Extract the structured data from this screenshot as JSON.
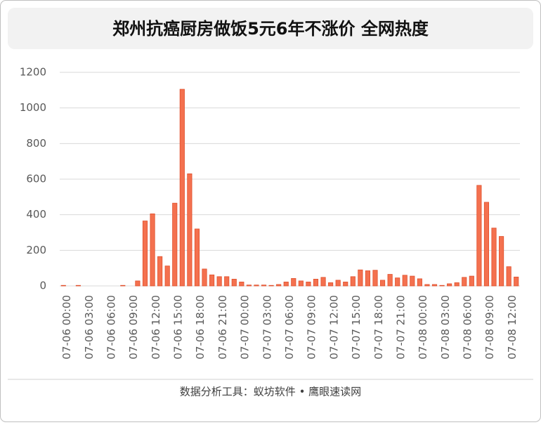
{
  "chart_data": {
    "type": "bar",
    "title": "郑州抗癌厨房做饭5元6年不涨价 全网热度",
    "footer": "数据分析工具：蚁坊软件 • 鹰眼速读网",
    "categories": [
      "07-06 00:00",
      null,
      null,
      "07-06 03:00",
      null,
      null,
      "07-06 06:00",
      null,
      null,
      "07-06 09:00",
      null,
      null,
      "07-06 12:00",
      null,
      null,
      "07-06 15:00",
      null,
      null,
      "07-06 18:00",
      null,
      null,
      "07-06 21:00",
      null,
      null,
      "07-07 00:00",
      null,
      null,
      "07-07 03:00",
      null,
      null,
      "07-07 06:00",
      null,
      null,
      "07-07 09:00",
      null,
      null,
      "07-07 12:00",
      null,
      null,
      "07-07 15:00",
      null,
      null,
      "07-07 18:00",
      null,
      null,
      "07-07 21:00",
      null,
      null,
      "07-08 00:00",
      null,
      null,
      "07-08 03:00",
      null,
      null,
      "07-08 06:00",
      null,
      null,
      "07-08 09:00",
      null,
      null,
      "07-08 12:00",
      null
    ],
    "values": [
      3,
      0,
      3,
      0,
      0,
      0,
      0,
      0,
      3,
      0,
      28,
      365,
      405,
      165,
      112,
      465,
      1105,
      630,
      320,
      95,
      62,
      52,
      52,
      38,
      22,
      5,
      5,
      5,
      3,
      8,
      22,
      42,
      28,
      22,
      38,
      48,
      18,
      32,
      22,
      52,
      90,
      85,
      88,
      32,
      65,
      45,
      60,
      55,
      40,
      8,
      8,
      3,
      12,
      18,
      48,
      55,
      565,
      470,
      325,
      278,
      108,
      50
    ],
    "color": "#f4714f",
    "ylim": [
      0,
      1200
    ],
    "yticks": [
      0,
      200,
      400,
      600,
      800,
      1000,
      1200
    ],
    "grid": true
  }
}
